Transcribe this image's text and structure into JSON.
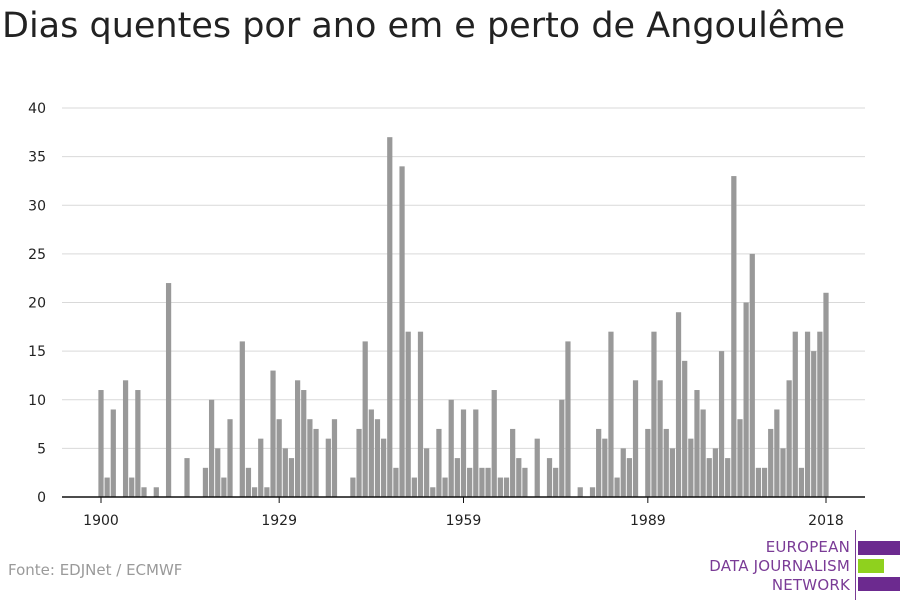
{
  "source": "Fonte: EDJNet / ECMWF",
  "logo": {
    "line1": "EUROPEAN",
    "line2": "DATA JOURNALISM",
    "line3": "NETWORK",
    "colors": {
      "purple": "#6c2a8f",
      "green": "#8fd11e"
    }
  },
  "chart_data": {
    "type": "bar",
    "title": "Dias quentes por ano em e perto de Angoulême",
    "xlabel": "",
    "ylabel": "",
    "ylim": [
      0,
      40
    ],
    "yticks": [
      0,
      5,
      10,
      15,
      20,
      25,
      30,
      35,
      40
    ],
    "xticks": [
      1900,
      1929,
      1959,
      1989,
      2018
    ],
    "grid": true,
    "bar_color": "#999999",
    "x": [
      1900,
      1901,
      1902,
      1903,
      1904,
      1905,
      1906,
      1907,
      1908,
      1909,
      1910,
      1911,
      1912,
      1913,
      1914,
      1915,
      1916,
      1917,
      1918,
      1919,
      1920,
      1921,
      1922,
      1923,
      1924,
      1925,
      1926,
      1927,
      1928,
      1929,
      1930,
      1931,
      1932,
      1933,
      1934,
      1935,
      1936,
      1937,
      1938,
      1939,
      1940,
      1941,
      1942,
      1943,
      1944,
      1945,
      1946,
      1947,
      1948,
      1949,
      1950,
      1951,
      1952,
      1953,
      1954,
      1955,
      1956,
      1957,
      1958,
      1959,
      1960,
      1961,
      1962,
      1963,
      1964,
      1965,
      1966,
      1967,
      1968,
      1969,
      1970,
      1971,
      1972,
      1973,
      1974,
      1975,
      1976,
      1977,
      1978,
      1979,
      1980,
      1981,
      1982,
      1983,
      1984,
      1985,
      1986,
      1987,
      1988,
      1989,
      1990,
      1991,
      1992,
      1993,
      1994,
      1995,
      1996,
      1997,
      1998,
      1999,
      2000,
      2001,
      2002,
      2003,
      2004,
      2005,
      2006,
      2007,
      2008,
      2009,
      2010,
      2011,
      2012,
      2013,
      2014,
      2015,
      2016,
      2017,
      2018
    ],
    "values": [
      11,
      2,
      9,
      0,
      12,
      2,
      11,
      1,
      0,
      1,
      0,
      22,
      0,
      0,
      4,
      0,
      0,
      3,
      10,
      5,
      2,
      8,
      0,
      16,
      3,
      1,
      6,
      1,
      13,
      8,
      5,
      4,
      12,
      11,
      8,
      7,
      0,
      6,
      8,
      0,
      0,
      2,
      7,
      16,
      9,
      8,
      6,
      37,
      3,
      34,
      17,
      2,
      17,
      5,
      1,
      7,
      2,
      10,
      4,
      9,
      3,
      9,
      3,
      3,
      11,
      2,
      2,
      7,
      4,
      3,
      0,
      6,
      0,
      4,
      3,
      10,
      16,
      0,
      1,
      0,
      1,
      7,
      6,
      17,
      2,
      5,
      4,
      12,
      0,
      7,
      17,
      12,
      7,
      5,
      19,
      14,
      6,
      11,
      9,
      4,
      5,
      15,
      4,
      33,
      8,
      20,
      25,
      3,
      3,
      7,
      9,
      5,
      12,
      17,
      3,
      17,
      15,
      17,
      21
    ]
  }
}
